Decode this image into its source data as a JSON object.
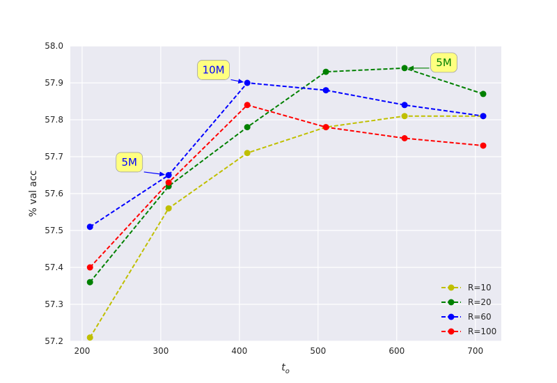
{
  "chart_data": {
    "type": "line",
    "xlabel": "t",
    "xlabel_subscript": "o",
    "ylabel": "% val acc",
    "xlim": [
      185,
      733
    ],
    "ylim": [
      57.2,
      58.0
    ],
    "xticks": [
      200,
      300,
      400,
      500,
      600,
      700
    ],
    "yticks": [
      57.2,
      57.3,
      57.4,
      57.5,
      57.6,
      57.7,
      57.8,
      57.9,
      58.0
    ],
    "ytick_labels": [
      "57.2",
      "57.3",
      "57.4",
      "57.5",
      "57.6",
      "57.7",
      "57.8",
      "57.9",
      "58.0"
    ],
    "grid": true,
    "legend_position": "bottom-right",
    "x": [
      210,
      310,
      410,
      510,
      610,
      710
    ],
    "series": [
      {
        "name": "R=10",
        "color": "#bfbf00",
        "values": [
          57.21,
          57.56,
          57.71,
          57.78,
          57.81,
          57.81
        ]
      },
      {
        "name": "R=20",
        "color": "#008000",
        "values": [
          57.36,
          57.62,
          57.78,
          57.93,
          57.94,
          57.87
        ]
      },
      {
        "name": "R=60",
        "color": "#0000ff",
        "values": [
          57.51,
          57.65,
          57.9,
          57.88,
          57.84,
          57.81
        ]
      },
      {
        "name": "R=100",
        "color": "#ff0000",
        "values": [
          57.4,
          57.63,
          57.84,
          57.78,
          57.75,
          57.73
        ]
      }
    ],
    "annotations": [
      {
        "text": "5M",
        "color": "#0000ff",
        "point": [
          310,
          57.65
        ],
        "label_at": [
          260,
          57.685
        ]
      },
      {
        "text": "10M",
        "color": "#0000ff",
        "point": [
          410,
          57.9
        ],
        "label_at": [
          367,
          57.935
        ]
      },
      {
        "text": "5M",
        "color": "#008000",
        "point": [
          610,
          57.94
        ],
        "label_at": [
          660,
          57.955
        ]
      }
    ],
    "annotation_box_color": "#ffff80"
  }
}
